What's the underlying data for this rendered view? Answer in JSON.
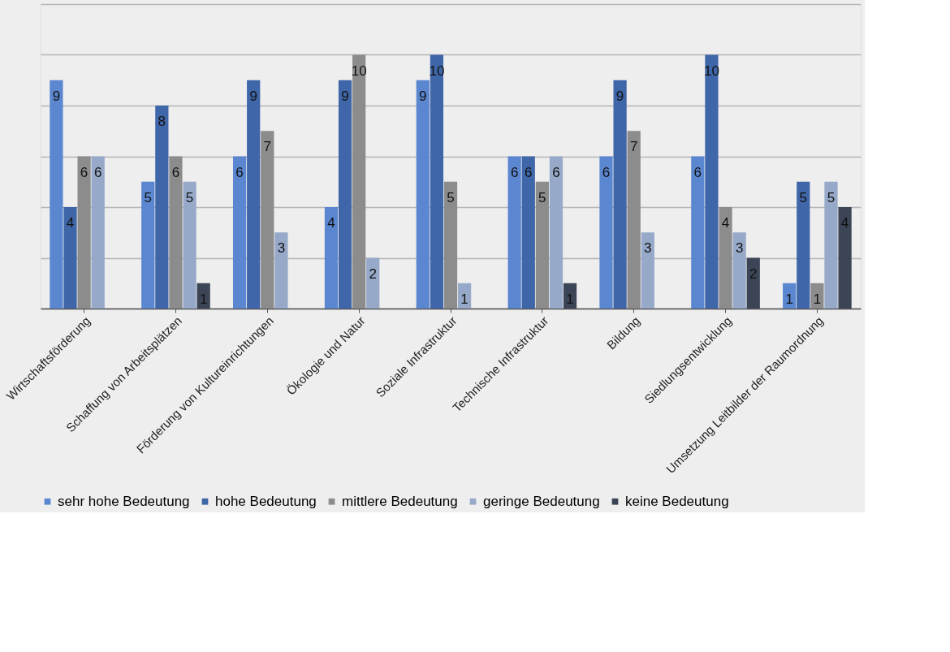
{
  "chart_data": {
    "type": "bar",
    "categories": [
      "Wirtschaftsförderung",
      "Schaffung von Arbeitsplätzen",
      "Förderung von Kultureinrichtungen",
      "Ökologie und Natur",
      "Soziale Infrastruktur",
      "Technische Infrastruktur",
      "Bildung",
      "Siedlungsentwicklung",
      "Umsetzung  Leitbilder der Raumordnung"
    ],
    "series": [
      {
        "name": "sehr hohe Bedeutung",
        "color": "#5b86d0",
        "values": [
          9,
          5,
          6,
          4,
          9,
          6,
          6,
          6,
          1
        ]
      },
      {
        "name": "hohe Bedeutung",
        "color": "#3f66a8",
        "values": [
          4,
          8,
          9,
          9,
          10,
          6,
          9,
          10,
          5
        ]
      },
      {
        "name": "mittlere Bedeutung",
        "color": "#8c8c8c",
        "values": [
          6,
          6,
          7,
          10,
          5,
          5,
          7,
          4,
          1
        ]
      },
      {
        "name": "geringe Bedeutung",
        "color": "#97a9c9",
        "values": [
          6,
          5,
          3,
          2,
          1,
          6,
          3,
          3,
          5
        ]
      },
      {
        "name": "keine Bedeutung",
        "color": "#3b4556",
        "values": [
          null,
          1,
          null,
          null,
          null,
          1,
          null,
          2,
          4
        ]
      }
    ],
    "ylim": [
      0,
      12
    ],
    "yticks": [
      {
        "value": 0,
        "label": null
      },
      {
        "value": 2,
        "label": null
      },
      {
        "value": 4,
        "label": null
      },
      {
        "value": 6,
        "label": null
      },
      {
        "value": 8,
        "label": null
      },
      {
        "value": 10,
        "label": null
      },
      {
        "value": 12,
        "label": null
      }
    ],
    "tick_labels": "x",
    "grid": "y",
    "legend": "bottom",
    "data_labels": true
  }
}
